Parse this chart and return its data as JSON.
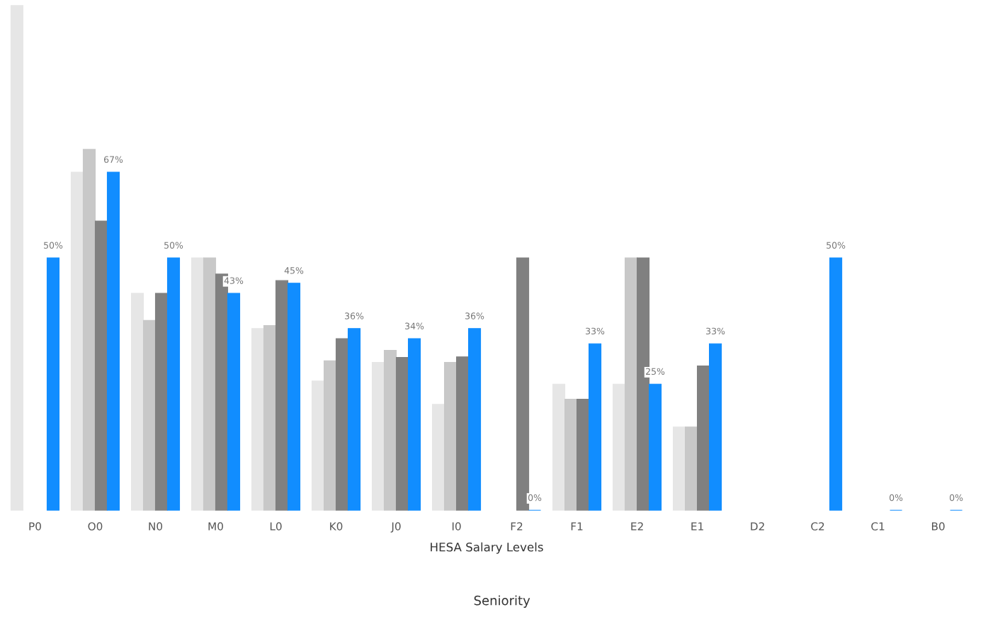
{
  "chart_data": {
    "type": "bar",
    "xlabel": "HESA Salary Levels",
    "annotations": [
      "Seniority"
    ],
    "categories": [
      "P0",
      "O0",
      "N0",
      "M0",
      "L0",
      "K0",
      "J0",
      "I0",
      "F2",
      "F1",
      "E2",
      "E1",
      "D2",
      "C2",
      "C1",
      "B0"
    ],
    "ylim": [
      0,
      100
    ],
    "tick_labels": "x",
    "grid": false,
    "legend": false,
    "series": [
      {
        "color": "#e6e6e6",
        "values": [
          100,
          67,
          43,
          50,
          36,
          25.6,
          29.3,
          21,
          null,
          25,
          25,
          16.5,
          null,
          null,
          null,
          null
        ]
      },
      {
        "color": "#c8c8c8",
        "values": [
          null,
          71.5,
          37.6,
          50,
          36.6,
          29.6,
          31.7,
          29.3,
          null,
          22,
          50,
          16.5,
          null,
          null,
          null,
          null
        ]
      },
      {
        "color": "#808080",
        "values": [
          null,
          57.3,
          43,
          46.8,
          45.5,
          34,
          30.3,
          30.4,
          50,
          22,
          50,
          28.6,
          null,
          null,
          null,
          null
        ]
      },
      {
        "color": "#118dff",
        "values": [
          50,
          67,
          50,
          43,
          45,
          36,
          34,
          36,
          0,
          33,
          25,
          33,
          null,
          50,
          0,
          0
        ],
        "value_labels": [
          "50%",
          "67%",
          "50%",
          "43%",
          "45%",
          "36%",
          "34%",
          "36%",
          "0%",
          "33%",
          "25%",
          "33%",
          null,
          "50%",
          "0%",
          "0%"
        ]
      }
    ]
  }
}
